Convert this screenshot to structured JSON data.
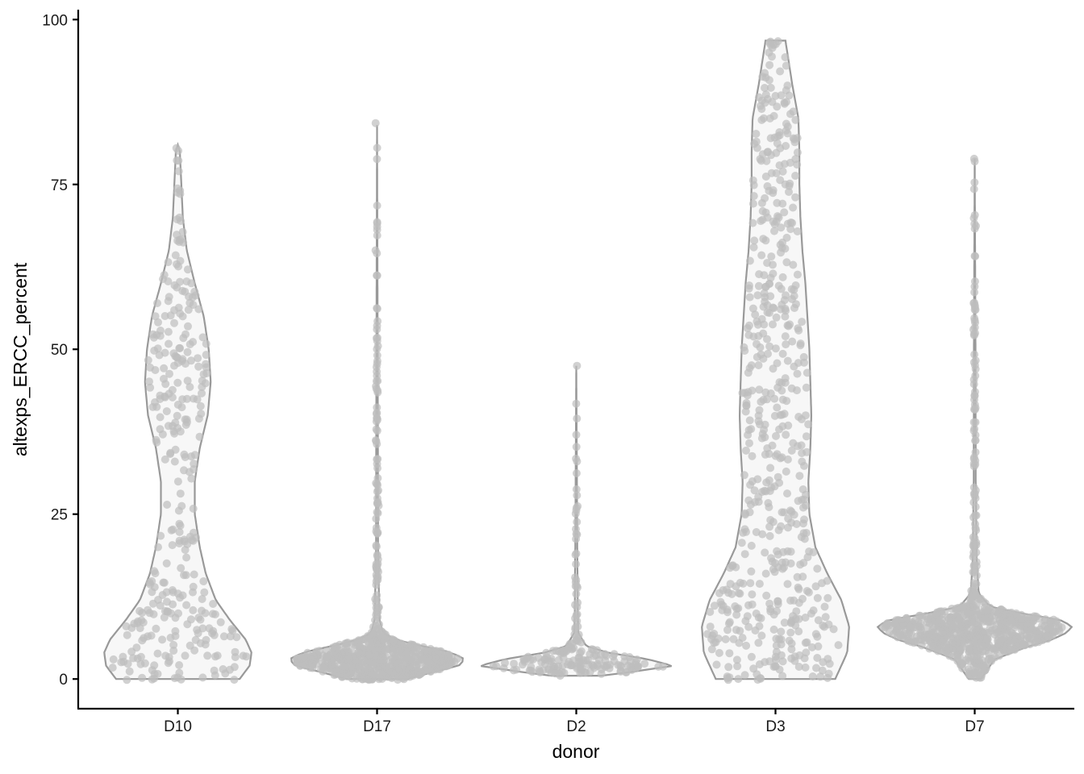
{
  "chart_data": {
    "type": "violin",
    "xlabel": "donor",
    "ylabel": "altexps_ERCC_percent",
    "categories": [
      "D10",
      "D17",
      "D2",
      "D3",
      "D7"
    ],
    "ylim": [
      -4.5,
      101.5
    ],
    "yticks": [
      0,
      25,
      50,
      75,
      100
    ],
    "grid": false,
    "legend": "none",
    "colors": {
      "violin_fill": "#f7f7f7",
      "violin_stroke": "#999999",
      "point": "#bdbdbd"
    },
    "groups": [
      {
        "name": "D10",
        "ymin": 0,
        "ymax": 81,
        "density": [
          [
            0,
            0.62
          ],
          [
            2,
            0.72
          ],
          [
            4,
            0.74
          ],
          [
            6,
            0.68
          ],
          [
            9,
            0.52
          ],
          [
            12,
            0.38
          ],
          [
            16,
            0.28
          ],
          [
            20,
            0.22
          ],
          [
            25,
            0.17
          ],
          [
            30,
            0.17
          ],
          [
            35,
            0.22
          ],
          [
            40,
            0.3
          ],
          [
            45,
            0.33
          ],
          [
            50,
            0.31
          ],
          [
            55,
            0.26
          ],
          [
            60,
            0.17
          ],
          [
            65,
            0.09
          ],
          [
            70,
            0.05
          ],
          [
            75,
            0.035
          ],
          [
            80,
            0.02
          ],
          [
            81,
            0
          ]
        ],
        "highlights": [
          80.5,
          80.1,
          78.6,
          74.4,
          69.7,
          66.2,
          63.4,
          62.9
        ],
        "n_points": 320
      },
      {
        "name": "D17",
        "ymin": 0,
        "ymax": 84,
        "density": [
          [
            0,
            0.3
          ],
          [
            1,
            0.55
          ],
          [
            2,
            0.82
          ],
          [
            3,
            0.88
          ],
          [
            4,
            0.75
          ],
          [
            5,
            0.45
          ],
          [
            6,
            0.18
          ],
          [
            7,
            0.06
          ],
          [
            9,
            0.025
          ],
          [
            12,
            0.02
          ],
          [
            20,
            0.01
          ],
          [
            40,
            0.008
          ],
          [
            84,
            0
          ]
        ],
        "highlights": [
          84.3,
          65.0,
          50.5,
          44.4,
          36.2,
          29.7,
          28.6,
          26.3,
          24.3,
          22.4,
          17.5,
          15.8,
          12.0,
          11.5,
          10.8
        ],
        "n_points": 700
      },
      {
        "name": "D2",
        "ymin": 0.5,
        "ymax": 47.5,
        "density": [
          [
            0.5,
            0.25
          ],
          [
            1,
            0.52
          ],
          [
            2,
            0.97
          ],
          [
            3,
            0.72
          ],
          [
            4,
            0.32
          ],
          [
            5,
            0.1
          ],
          [
            7,
            0.02
          ],
          [
            10,
            0.015
          ],
          [
            20,
            0.01
          ],
          [
            47.5,
            0
          ]
        ],
        "highlights": [
          47.5,
          39.5,
          35.2,
          33.0,
          31.2,
          26.2,
          14.1,
          12.9,
          10.9,
          9.2,
          7.8,
          5.4
        ],
        "n_points": 180
      },
      {
        "name": "D3",
        "ymin": 0,
        "ymax": 96.8,
        "density": [
          [
            0,
            0.6
          ],
          [
            4,
            0.72
          ],
          [
            8,
            0.74
          ],
          [
            12,
            0.66
          ],
          [
            16,
            0.52
          ],
          [
            20,
            0.4
          ],
          [
            25,
            0.34
          ],
          [
            30,
            0.33
          ],
          [
            35,
            0.35
          ],
          [
            40,
            0.36
          ],
          [
            45,
            0.35
          ],
          [
            50,
            0.34
          ],
          [
            55,
            0.32
          ],
          [
            60,
            0.3
          ],
          [
            65,
            0.27
          ],
          [
            70,
            0.25
          ],
          [
            75,
            0.24
          ],
          [
            80,
            0.24
          ],
          [
            85,
            0.23
          ],
          [
            90,
            0.17
          ],
          [
            96.8,
            0.1
          ]
        ],
        "highlights": [
          95.0,
          93.0,
          91.2,
          90.0,
          87.5,
          86.8
        ],
        "n_points": 560
      },
      {
        "name": "D7",
        "ymin": 0,
        "ymax": 78.9,
        "density": [
          [
            0,
            0.06
          ],
          [
            3,
            0.2
          ],
          [
            5,
            0.55
          ],
          [
            6,
            0.78
          ],
          [
            7,
            0.92
          ],
          [
            8,
            0.98
          ],
          [
            9,
            0.85
          ],
          [
            10,
            0.45
          ],
          [
            11,
            0.15
          ],
          [
            13,
            0.04
          ],
          [
            18,
            0.02
          ],
          [
            30,
            0.01
          ],
          [
            50,
            0.008
          ],
          [
            78.9,
            0
          ]
        ],
        "highlights": [
          78.9,
          75.3,
          74.3,
          69.9,
          68.7,
          68.3,
          64.1,
          60.3,
          57.0,
          56.0,
          53.0,
          48.3,
          47.0,
          45.4,
          43.0,
          40.9,
          37.0,
          33.4,
          28.6,
          28.1,
          26.1,
          24.8,
          20.0,
          19.2
        ],
        "n_points": 760
      }
    ]
  }
}
